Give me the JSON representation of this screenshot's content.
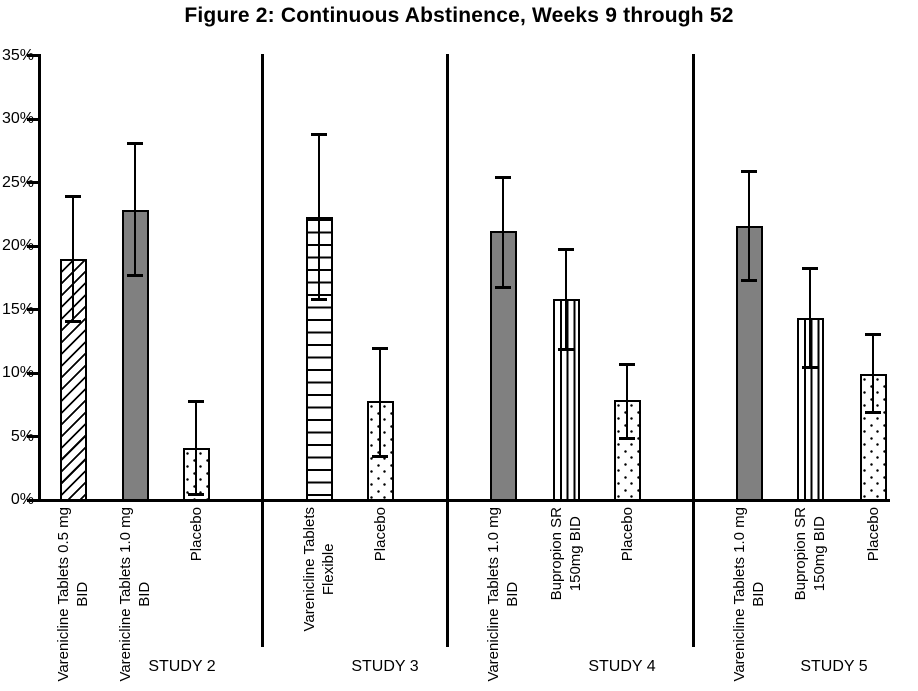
{
  "title": "Figure 2: Continuous Abstinence, Weeks 9 through 52",
  "chart_data": {
    "type": "bar",
    "title": "Figure 2: Continuous Abstinence, Weeks 9 through 52",
    "xlabel": "",
    "ylabel": "",
    "grid": false,
    "legend": false,
    "error_bars": true,
    "y_axis": {
      "min": 0,
      "max": 35,
      "tick_step": 5,
      "unit": "%",
      "tick_values": [
        0,
        5,
        10,
        15,
        20,
        25,
        30,
        35
      ],
      "tick_labels": [
        "0%",
        "5%",
        "10%",
        "15%",
        "20%",
        "25%",
        "30%",
        "35%"
      ]
    },
    "colors": {
      "bar_gray": "#808080",
      "bar_border": "#000000",
      "axis": "#000000",
      "background": "#ffffff"
    },
    "groups": [
      {
        "label": "STUDY 2",
        "bars": [
          {
            "label_lines": [
              "Varenicline Tablets 0.5 mg",
              "BID"
            ],
            "value": 19.0,
            "ci_low": 14.1,
            "ci_high": 23.9,
            "pattern": "diagonal-hatch"
          },
          {
            "label_lines": [
              "Varenicline Tablets 1.0 mg",
              "BID"
            ],
            "value": 22.8,
            "ci_low": 17.7,
            "ci_high": 28.1,
            "pattern": "solid-gray"
          },
          {
            "label_lines": [
              "Placebo"
            ],
            "value": 4.1,
            "ci_low": 0.5,
            "ci_high": 7.8,
            "pattern": "dots"
          }
        ]
      },
      {
        "label": "STUDY 3",
        "bars": [
          {
            "label_lines": [
              "Varenicline Tablets",
              "Flexible"
            ],
            "value": 22.3,
            "ci_low": 15.8,
            "ci_high": 28.8,
            "pattern": "horizontal-lines"
          },
          {
            "label_lines": [
              "Placebo"
            ],
            "value": 7.8,
            "ci_low": 3.5,
            "ci_high": 12.0,
            "pattern": "dots"
          }
        ]
      },
      {
        "label": "STUDY 4",
        "bars": [
          {
            "label_lines": [
              "Varenicline Tablets 1.0 mg",
              "BID"
            ],
            "value": 21.2,
            "ci_low": 16.8,
            "ci_high": 25.4,
            "pattern": "solid-gray"
          },
          {
            "label_lines": [
              "Bupropion SR",
              "150mg BID"
            ],
            "value": 15.8,
            "ci_low": 11.9,
            "ci_high": 19.8,
            "pattern": "vertical-lines"
          },
          {
            "label_lines": [
              "Placebo"
            ],
            "value": 7.9,
            "ci_low": 4.9,
            "ci_high": 10.7,
            "pattern": "dots"
          }
        ]
      },
      {
        "label": "STUDY 5",
        "bars": [
          {
            "label_lines": [
              "Varenicline Tablets 1.0 mg",
              "BID"
            ],
            "value": 21.6,
            "ci_low": 17.3,
            "ci_high": 25.9,
            "pattern": "solid-gray"
          },
          {
            "label_lines": [
              "Bupropion SR",
              "150mg BID"
            ],
            "value": 14.3,
            "ci_low": 10.5,
            "ci_high": 18.3,
            "pattern": "vertical-lines"
          },
          {
            "label_lines": [
              "Placebo"
            ],
            "value": 9.9,
            "ci_low": 6.9,
            "ci_high": 13.1,
            "pattern": "dots"
          }
        ]
      }
    ]
  }
}
